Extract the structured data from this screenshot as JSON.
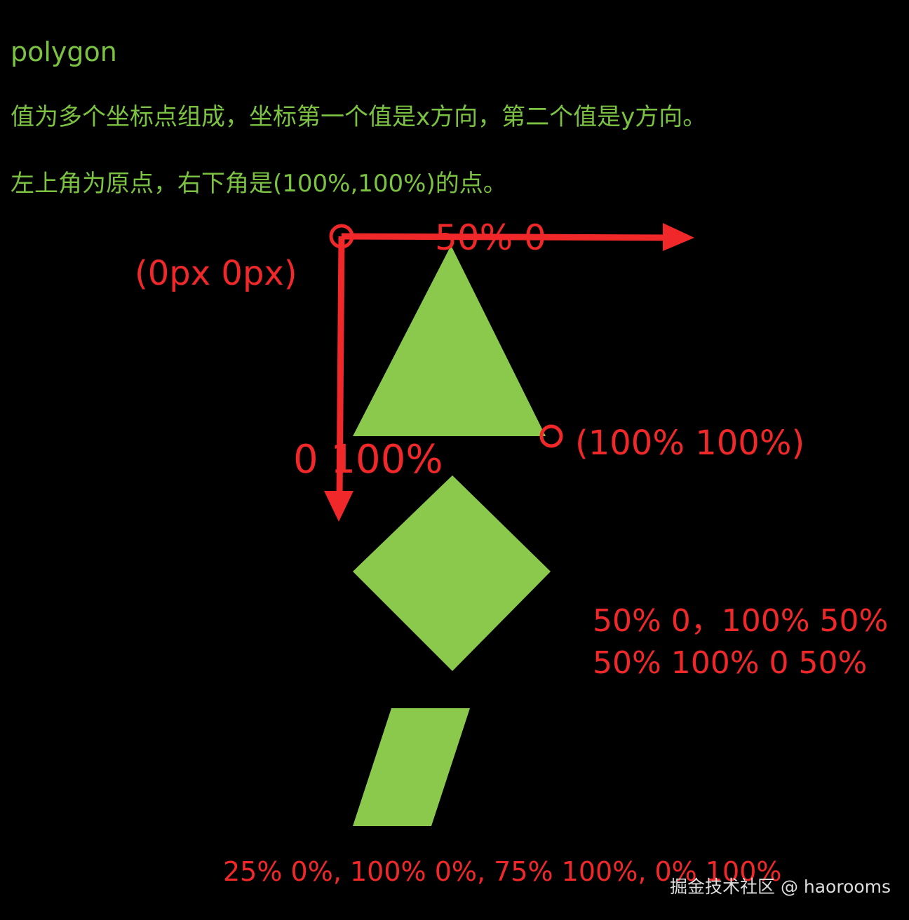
{
  "title": "polygon",
  "description_lines": [
    "值为多个坐标点组成，坐标第一个值是x方向，第二个值是y方向。",
    "左上角为原点，右下角是(100%,100%)的点。"
  ],
  "labels": {
    "top_point": "50% 0",
    "origin": "(0px 0px)",
    "bottom_right": "(100% 100%)",
    "bottom_left": "0 100%",
    "diamond_line1": "50% 0，100% 50%",
    "diamond_line2": "50% 100% 0 50%",
    "parallelogram": "25% 0%, 100% 0%, 75% 100%, 0% 100%"
  },
  "watermark": "掘金技术社区 @ haorooms",
  "colors": {
    "shape": "#8bc94c",
    "annotation": "#f0282a",
    "text": "#7cc242",
    "background": "#000000"
  }
}
